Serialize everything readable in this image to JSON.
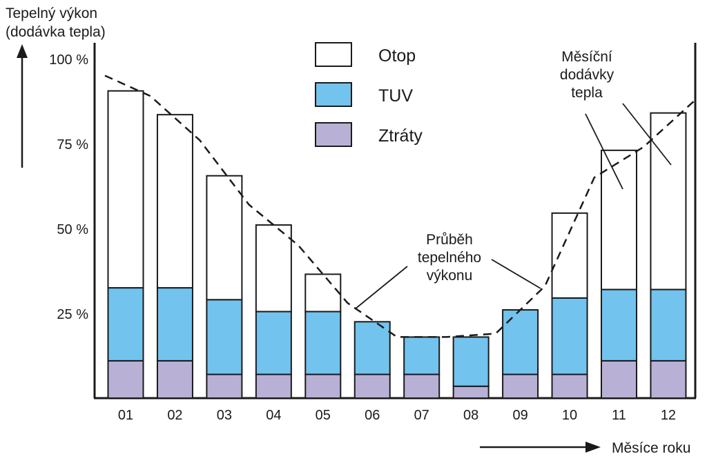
{
  "chart_data": {
    "type": "bar",
    "stacked": true,
    "ylabel_line1": "Tepelný výkon",
    "ylabel_line2": "(dodávka tepla)",
    "xlabel": "Měsíce roku",
    "ylim": [
      0,
      100
    ],
    "yticks": [
      {
        "value": 25,
        "label": "25 %"
      },
      {
        "value": 50,
        "label": "50 %"
      },
      {
        "value": 75,
        "label": "75 %"
      },
      {
        "value": 100,
        "label": "100 %"
      }
    ],
    "categories": [
      "01",
      "02",
      "03",
      "04",
      "05",
      "06",
      "07",
      "08",
      "09",
      "10",
      "11",
      "12"
    ],
    "series": [
      {
        "name": "Ztráty",
        "color": "#b9b0d6",
        "values": [
          11,
          11,
          7,
          7,
          7,
          7,
          7,
          3.5,
          7,
          7,
          11,
          11
        ]
      },
      {
        "name": "TUV",
        "color": "#72c3ee",
        "values": [
          21.5,
          21.5,
          22,
          18.5,
          18.5,
          15.5,
          11,
          14.5,
          19,
          22.5,
          21,
          21
        ]
      },
      {
        "name": "Otop",
        "color": "#ffffff",
        "values": [
          58,
          51,
          36.5,
          25.5,
          11,
          0,
          0,
          0,
          0,
          25,
          41,
          52
        ]
      }
    ],
    "trend_line": [
      95,
      89,
      76,
      57,
      45,
      28,
      18,
      18,
      19,
      33,
      65,
      74,
      88
    ],
    "annotations": {
      "trend": [
        "Průběh",
        "tepelného",
        "výkonu"
      ],
      "monthly": [
        "Měsíční",
        "dodávky",
        "tepla"
      ]
    },
    "grid": false,
    "legend_position": "top-center"
  }
}
